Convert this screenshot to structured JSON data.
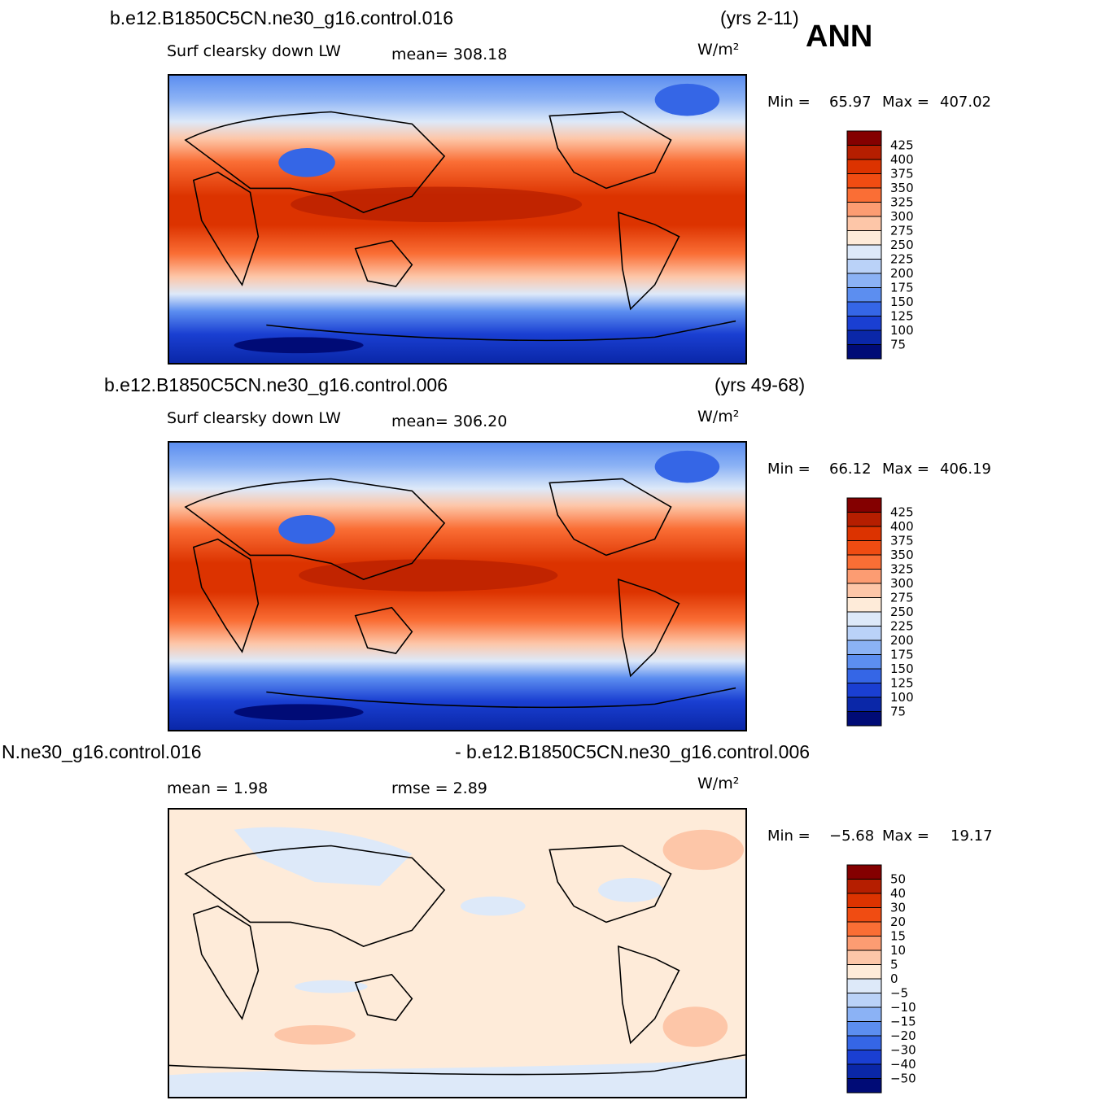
{
  "header": {
    "annual_label": "ANN",
    "units": "W/m²"
  },
  "chart_data": [
    {
      "type": "heatmap",
      "case_title": "b.e12.B1850C5CN.ne30_g16.control.016",
      "years": "(yrs 2-11)",
      "variable": "Surf  clearsky  down  LW",
      "mean_text": "mean=  308.18",
      "mean": 308.18,
      "units": "W/m²",
      "min_label": "Min  =",
      "min_value": "65.97",
      "max_label": "Max  =",
      "max_value": "407.02",
      "min": 65.97,
      "max": 407.02,
      "levels": [
        "425",
        "400",
        "375",
        "350",
        "325",
        "300",
        "275",
        "250",
        "225",
        "200",
        "175",
        "150",
        "125",
        "100",
        "75"
      ],
      "colors": [
        "#840000",
        "#b51e00",
        "#dc3300",
        "#f04c12",
        "#fa6e35",
        "#fc9c72",
        "#fdc6a8",
        "#feebd9",
        "#dde9f9",
        "#bad2f8",
        "#8bb2f5",
        "#5c8ef0",
        "#3566e6",
        "#1a3fd2",
        "#0a27a8",
        "#000b76"
      ],
      "x_label": "",
      "y_label": ""
    },
    {
      "type": "heatmap",
      "case_title": "b.e12.B1850C5CN.ne30_g16.control.006",
      "years": "(yrs 49-68)",
      "variable": "Surf  clearsky  down  LW",
      "mean_text": "mean=  306.20",
      "mean": 306.2,
      "units": "W/m²",
      "min_label": "Min  =",
      "min_value": "66.12",
      "max_label": "Max  =",
      "max_value": "406.19",
      "min": 66.12,
      "max": 406.19,
      "levels": [
        "425",
        "400",
        "375",
        "350",
        "325",
        "300",
        "275",
        "250",
        "225",
        "200",
        "175",
        "150",
        "125",
        "100",
        "75"
      ],
      "colors": [
        "#840000",
        "#b51e00",
        "#dc3300",
        "#f04c12",
        "#fa6e35",
        "#fc9c72",
        "#fdc6a8",
        "#feebd9",
        "#dde9f9",
        "#bad2f8",
        "#8bb2f5",
        "#5c8ef0",
        "#3566e6",
        "#1a3fd2",
        "#0a27a8",
        "#000b76"
      ],
      "x_label": "",
      "y_label": ""
    },
    {
      "type": "heatmap",
      "case_title_left": "N.ne30_g16.control.016",
      "case_title_right": "- b.e12.B1850C5CN.ne30_g16.control.006",
      "mean_text": "mean  =      1.98",
      "mean": 1.98,
      "rmse_text": "rmse  =      2.89",
      "rmse": 2.89,
      "units": "W/m²",
      "min_label": "Min  =",
      "min_value": "−5.68",
      "max_label": "Max  =",
      "max_value": "19.17",
      "min": -5.68,
      "max": 19.17,
      "levels": [
        "50",
        "40",
        "30",
        "20",
        "15",
        "10",
        "5",
        "0",
        "−5",
        "−10",
        "−15",
        "−20",
        "−30",
        "−40",
        "−50"
      ],
      "colors": [
        "#840000",
        "#b51e00",
        "#dc3300",
        "#f04c12",
        "#fa6e35",
        "#fc9c72",
        "#fdc6a8",
        "#feebd9",
        "#dde9f9",
        "#bad2f8",
        "#8bb2f5",
        "#5c8ef0",
        "#3566e6",
        "#1a3fd2",
        "#0a27a8",
        "#000b76"
      ],
      "x_label": "",
      "y_label": ""
    }
  ]
}
